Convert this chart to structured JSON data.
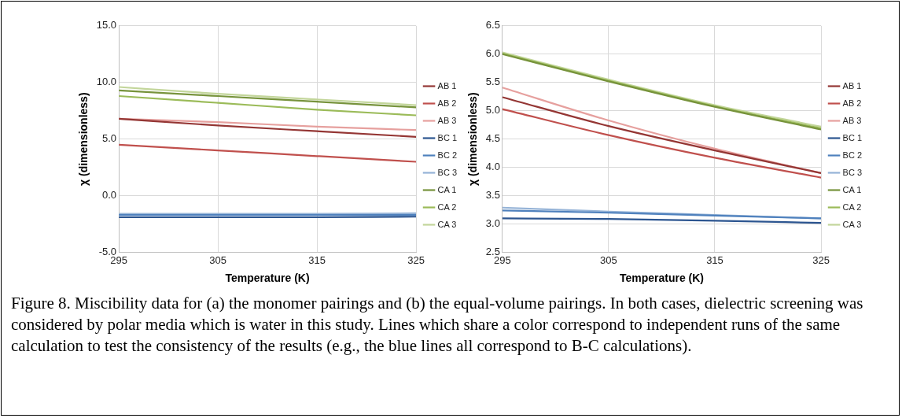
{
  "chart_data": [
    {
      "type": "line",
      "xlabel": "Temperature (K)",
      "ylabel": "χ (dimensionless)",
      "x": [
        295,
        305,
        315,
        325
      ],
      "xlim": [
        295,
        325
      ],
      "xticks": [
        295,
        305,
        315,
        325
      ],
      "ylim": [
        -5,
        15
      ],
      "yticks": [
        {
          "value": -5,
          "label": "-5.0"
        },
        {
          "value": 0,
          "label": "0.0"
        },
        {
          "value": 5,
          "label": "5.0"
        },
        {
          "value": 10,
          "label": "10.0"
        },
        {
          "value": 15,
          "label": "15.0"
        }
      ],
      "grid": true,
      "legend": "right",
      "marker": "none",
      "line_style": "solid",
      "annotations": [
        "Figure 8. Miscibility data for (a) the monomer pairings and (b) the equal-volume pairings. In both cases, dielectric screening was considered by polar media which is water in this study. Lines which share a color correspond to independent runs of the same calculation to test the consistency of the results (e.g., the blue lines all correspond to B-C calculations)."
      ],
      "series": [
        {
          "name": "AB 1",
          "color": "#943634",
          "values": [
            6.8,
            6.2,
            5.7,
            5.2
          ]
        },
        {
          "name": "AB 2",
          "color": "#c0504d",
          "values": [
            4.5,
            4.0,
            3.5,
            3.0
          ]
        },
        {
          "name": "AB 3",
          "color": "#e6a09e",
          "values": [
            6.8,
            6.5,
            6.1,
            5.8
          ]
        },
        {
          "name": "BC 1",
          "color": "#2c5590",
          "values": [
            -1.9,
            -1.9,
            -1.9,
            -1.85
          ]
        },
        {
          "name": "BC 2",
          "color": "#4f81bd",
          "values": [
            -1.7,
            -1.7,
            -1.7,
            -1.7
          ]
        },
        {
          "name": "BC 3",
          "color": "#95b3d7",
          "values": [
            -1.6,
            -1.6,
            -1.6,
            -1.55
          ]
        },
        {
          "name": "CA 1",
          "color": "#77933c",
          "values": [
            9.3,
            8.8,
            8.3,
            7.8
          ]
        },
        {
          "name": "CA 2",
          "color": "#9bbb59",
          "values": [
            8.8,
            8.2,
            7.6,
            7.1
          ]
        },
        {
          "name": "CA 3",
          "color": "#c3d69b",
          "values": [
            9.6,
            9.0,
            8.5,
            8.0
          ]
        }
      ]
    },
    {
      "type": "line",
      "xlabel": "Temperature (K)",
      "ylabel": "χ (dimensionless)",
      "x": [
        295,
        305,
        315,
        325
      ],
      "xlim": [
        295,
        325
      ],
      "xticks": [
        295,
        305,
        315,
        325
      ],
      "ylim": [
        2.5,
        6.5
      ],
      "yticks": [
        {
          "value": 2.5,
          "label": "2.5"
        },
        {
          "value": 3,
          "label": "3.0"
        },
        {
          "value": 3.5,
          "label": "3.5"
        },
        {
          "value": 4,
          "label": "4.0"
        },
        {
          "value": 4.5,
          "label": "4.5"
        },
        {
          "value": 5,
          "label": "5.0"
        },
        {
          "value": 5.5,
          "label": "5.5"
        },
        {
          "value": 6,
          "label": "6.0"
        },
        {
          "value": 6.5,
          "label": "6.5"
        }
      ],
      "grid": true,
      "legend": "right",
      "marker": "none",
      "line_style": "solid",
      "series": [
        {
          "name": "AB 1",
          "color": "#943634",
          "values": [
            5.24,
            4.73,
            4.3,
            3.9
          ]
        },
        {
          "name": "AB 2",
          "color": "#c0504d",
          "values": [
            5.03,
            4.57,
            4.17,
            3.82
          ]
        },
        {
          "name": "AB 3",
          "color": "#e6a09e",
          "values": [
            5.41,
            4.83,
            4.33,
            3.9
          ]
        },
        {
          "name": "BC 1",
          "color": "#2c5590",
          "values": [
            3.1,
            3.09,
            3.06,
            3.02
          ]
        },
        {
          "name": "BC 2",
          "color": "#4f81bd",
          "values": [
            3.24,
            3.2,
            3.15,
            3.1
          ]
        },
        {
          "name": "BC 3",
          "color": "#95b3d7",
          "values": [
            3.29,
            3.22,
            3.16,
            3.1
          ]
        },
        {
          "name": "CA 1",
          "color": "#77933c",
          "values": [
            6.0,
            5.52,
            5.07,
            4.67
          ]
        },
        {
          "name": "CA 2",
          "color": "#9bbb59",
          "values": [
            6.01,
            5.53,
            5.08,
            4.69
          ]
        },
        {
          "name": "CA 3",
          "color": "#c3d69b",
          "values": [
            6.03,
            5.55,
            5.1,
            4.72
          ]
        }
      ]
    }
  ]
}
